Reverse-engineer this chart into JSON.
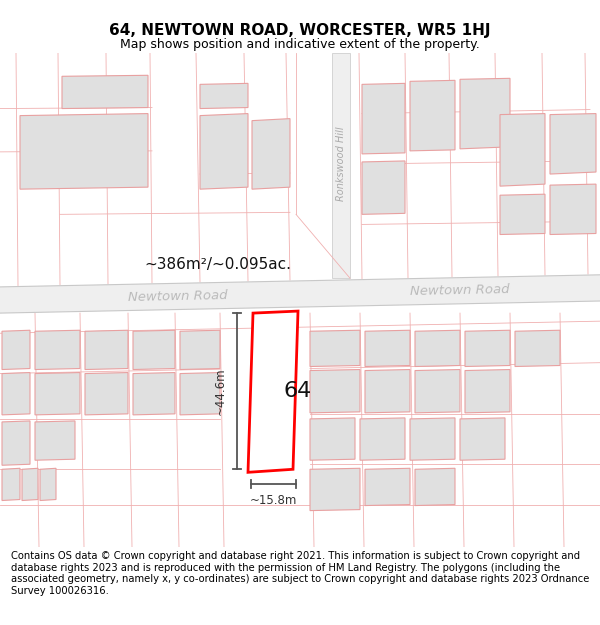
{
  "title": "64, NEWTOWN ROAD, WORCESTER, WR5 1HJ",
  "subtitle": "Map shows position and indicative extent of the property.",
  "area_label": "~386m²/~0.095ac.",
  "road_label_left": "Newtown Road",
  "road_label_right": "Newtown Road",
  "street_label_vertical": "Ronkswood Hill",
  "label_64": "64",
  "dim_vertical": "~44.6m",
  "dim_horizontal": "~15.8m",
  "footer": "Contains OS data © Crown copyright and database right 2021. This information is subject to Crown copyright and database rights 2023 and is reproduced with the permission of HM Land Registry. The polygons (including the associated geometry, namely x, y co-ordinates) are subject to Crown copyright and database rights 2023 Ordnance Survey 100026316.",
  "bg_color": "#ffffff",
  "map_bg": "#ffffff",
  "building_fill": "#e0e0e0",
  "building_edge_dark": "#b0b0b0",
  "building_edge_pink": "#e8a0a0",
  "highlight_fill": "#ffffff",
  "highlight_edge": "#ff0000",
  "road_fill": "#f0f0f0",
  "road_edge": "#cccccc",
  "cadastral_line": "#f0b0b0",
  "title_fontsize": 11,
  "subtitle_fontsize": 9,
  "footer_fontsize": 7.2,
  "road_text_color": "#bbbbbb",
  "area_text_color": "#111111",
  "dim_text_color": "#333333",
  "dim_line_color": "#555555"
}
